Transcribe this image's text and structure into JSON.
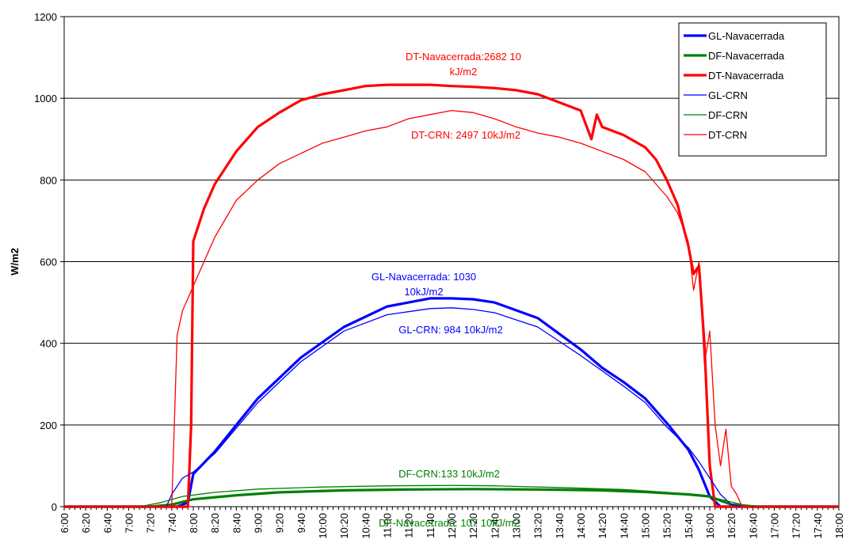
{
  "chart_data": {
    "type": "line",
    "title": "",
    "ylabel": "W/m2",
    "xlabel": "",
    "ylim": [
      0,
      1200
    ],
    "yticks": [
      0,
      200,
      400,
      600,
      800,
      1000,
      1200
    ],
    "xticks": [
      "6:00",
      "6:20",
      "6:40",
      "7:00",
      "7:20",
      "7:40",
      "8:00",
      "8:20",
      "8:40",
      "9:00",
      "9:20",
      "9:40",
      "10:00",
      "10:20",
      "10:40",
      "11:00",
      "11:20",
      "11:40",
      "12:00",
      "12:20",
      "12:40",
      "13:00",
      "13:20",
      "13:40",
      "14:00",
      "14:20",
      "14:40",
      "15:00",
      "15:20",
      "15:40",
      "16:00",
      "16:20",
      "16:40",
      "17:00",
      "17:20",
      "17:40",
      "18:00"
    ],
    "grid": "horizontal",
    "legend_position": "top-right",
    "colors": {
      "GL": "#0000ff",
      "DF": "#008000",
      "DT": "#ff0000"
    },
    "series": [
      {
        "name": "GL-Navacerrada",
        "color": "#0000ff",
        "weight": "thick",
        "x": [
          "6:00",
          "7:45",
          "7:55",
          "8:00",
          "8:20",
          "9:00",
          "9:40",
          "10:20",
          "11:00",
          "11:40",
          "12:00",
          "12:20",
          "12:40",
          "13:20",
          "14:00",
          "14:20",
          "14:40",
          "15:00",
          "15:20",
          "15:40",
          "15:50",
          "16:00",
          "16:10",
          "16:20",
          "18:00"
        ],
        "y": [
          0,
          0,
          10,
          80,
          135,
          265,
          365,
          440,
          490,
          510,
          510,
          508,
          500,
          462,
          385,
          340,
          305,
          265,
          205,
          140,
          90,
          25,
          0,
          0,
          0
        ]
      },
      {
        "name": "DF-Navacerrada",
        "color": "#008000",
        "weight": "thick",
        "x": [
          "6:00",
          "7:20",
          "7:40",
          "8:00",
          "8:40",
          "9:20",
          "10:20",
          "11:20",
          "12:20",
          "13:20",
          "14:20",
          "15:00",
          "15:40",
          "16:00",
          "16:20",
          "16:40",
          "18:00"
        ],
        "y": [
          0,
          0,
          5,
          18,
          28,
          35,
          40,
          42,
          43,
          42,
          40,
          36,
          30,
          25,
          5,
          0,
          0
        ]
      },
      {
        "name": "DT-Navacerrada",
        "color": "#ff0000",
        "weight": "thick",
        "x": [
          "6:00",
          "7:55",
          "7:58",
          "8:00",
          "8:10",
          "8:20",
          "8:40",
          "9:00",
          "9:20",
          "9:40",
          "10:00",
          "10:20",
          "10:40",
          "11:00",
          "11:20",
          "11:40",
          "12:00",
          "12:20",
          "12:40",
          "13:00",
          "13:20",
          "13:40",
          "14:00",
          "14:10",
          "14:15",
          "14:20",
          "14:40",
          "15:00",
          "15:10",
          "15:20",
          "15:30",
          "15:35",
          "15:40",
          "15:45",
          "15:50",
          "15:55",
          "16:00",
          "16:05",
          "16:10",
          "18:00"
        ],
        "y": [
          0,
          0,
          200,
          650,
          730,
          790,
          870,
          930,
          965,
          995,
          1010,
          1020,
          1030,
          1033,
          1033,
          1033,
          1030,
          1028,
          1025,
          1020,
          1010,
          990,
          970,
          900,
          960,
          930,
          910,
          880,
          850,
          800,
          740,
          690,
          640,
          570,
          590,
          400,
          100,
          0,
          0,
          0
        ]
      },
      {
        "name": "GL-CRN",
        "color": "#0000ff",
        "weight": "thin",
        "x": [
          "6:00",
          "7:35",
          "7:40",
          "7:50",
          "8:00",
          "8:20",
          "9:00",
          "9:40",
          "10:20",
          "11:00",
          "11:40",
          "12:00",
          "12:20",
          "12:40",
          "13:20",
          "14:00",
          "14:40",
          "15:00",
          "15:20",
          "15:40",
          "15:50",
          "16:00",
          "16:10",
          "16:20",
          "16:30",
          "18:00"
        ],
        "y": [
          0,
          0,
          30,
          70,
          85,
          130,
          255,
          355,
          430,
          470,
          485,
          487,
          483,
          475,
          440,
          370,
          295,
          255,
          195,
          145,
          110,
          70,
          30,
          5,
          0,
          0
        ]
      },
      {
        "name": "DF-CRN",
        "color": "#008000",
        "weight": "thin",
        "x": [
          "6:00",
          "7:10",
          "7:30",
          "7:50",
          "8:20",
          "9:00",
          "10:00",
          "11:00",
          "12:00",
          "12:40",
          "13:40",
          "14:40",
          "15:20",
          "15:50",
          "16:10",
          "16:30",
          "16:50",
          "18:00"
        ],
        "y": [
          0,
          0,
          10,
          25,
          35,
          43,
          48,
          51,
          52,
          51,
          47,
          42,
          35,
          28,
          18,
          5,
          0,
          0
        ]
      },
      {
        "name": "DT-CRN",
        "color": "#ff0000",
        "weight": "thin",
        "x": [
          "6:00",
          "7:40",
          "7:45",
          "7:50",
          "8:00",
          "8:20",
          "8:40",
          "9:00",
          "9:20",
          "9:40",
          "10:00",
          "10:20",
          "10:40",
          "11:00",
          "11:20",
          "11:40",
          "12:00",
          "12:20",
          "12:40",
          "13:00",
          "13:20",
          "13:40",
          "14:00",
          "14:20",
          "14:40",
          "15:00",
          "15:10",
          "15:20",
          "15:30",
          "15:40",
          "15:45",
          "15:50",
          "15:55",
          "16:00",
          "16:05",
          "16:10",
          "16:15",
          "16:20",
          "16:25",
          "16:30",
          "16:40",
          "18:00"
        ],
        "y": [
          0,
          0,
          420,
          480,
          540,
          660,
          750,
          800,
          840,
          865,
          890,
          905,
          920,
          930,
          950,
          960,
          970,
          965,
          950,
          930,
          915,
          905,
          890,
          870,
          850,
          820,
          790,
          760,
          720,
          650,
          530,
          600,
          350,
          430,
          200,
          100,
          190,
          50,
          30,
          0,
          0,
          0
        ]
      }
    ],
    "annotations": [
      {
        "lines": [
          "DT-Navacerrada:2682 10",
          "kJ/m2"
        ],
        "color": "#ff0000"
      },
      {
        "lines": [
          "DT-CRN: 2497 10kJ/m2"
        ],
        "color": "#ff0000"
      },
      {
        "lines": [
          "GL-Navacerrada: 1030",
          "10kJ/m2"
        ],
        "color": "#0000ff"
      },
      {
        "lines": [
          "GL-CRN: 984 10kJ/m2"
        ],
        "color": "#0000ff"
      },
      {
        "lines": [
          "DF-CRN:133 10kJ/m2"
        ],
        "color": "#008000"
      },
      {
        "lines": [
          "DF-Navacerrada: 107 10kJ/m2"
        ],
        "color": "#008000"
      }
    ]
  }
}
